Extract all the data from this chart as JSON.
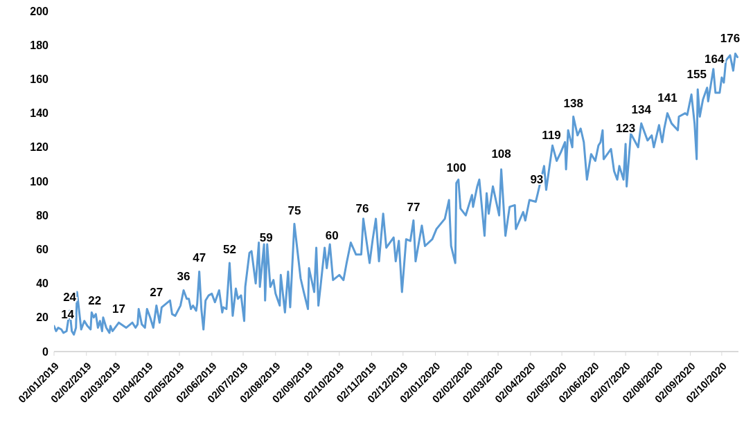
{
  "chart_data": {
    "type": "line",
    "x": [
      "2019-01-02",
      "2019-01-04",
      "2019-01-06",
      "2019-01-09",
      "2019-01-11",
      "2019-01-14",
      "2019-01-17",
      "2019-01-19",
      "2019-01-21",
      "2019-01-23",
      "2019-01-24",
      "2019-01-28",
      "2019-01-31",
      "2019-02-03",
      "2019-02-06",
      "2019-02-07",
      "2019-02-09",
      "2019-02-11",
      "2019-02-13",
      "2019-02-15",
      "2019-02-17",
      "2019-02-18",
      "2019-02-21",
      "2019-02-24",
      "2019-02-25",
      "2019-02-27",
      "2019-03-05",
      "2019-03-12",
      "2019-03-18",
      "2019-03-21",
      "2019-03-23",
      "2019-03-24",
      "2019-03-27",
      "2019-03-30",
      "2019-04-01",
      "2019-04-04",
      "2019-04-07",
      "2019-04-10",
      "2019-04-13",
      "2019-04-15",
      "2019-04-23",
      "2019-04-25",
      "2019-04-28",
      "2019-05-03",
      "2019-05-06",
      "2019-05-09",
      "2019-05-11",
      "2019-05-13",
      "2019-05-15",
      "2019-05-18",
      "2019-05-19",
      "2019-05-21",
      "2019-05-23",
      "2019-05-25",
      "2019-05-27",
      "2019-05-30",
      "2019-06-02",
      "2019-06-05",
      "2019-06-09",
      "2019-06-12",
      "2019-06-13",
      "2019-06-16",
      "2019-06-19",
      "2019-06-22",
      "2019-06-25",
      "2019-06-27",
      "2019-06-30",
      "2019-07-03",
      "2019-07-04",
      "2019-07-08",
      "2019-07-10",
      "2019-07-14",
      "2019-07-17",
      "2019-07-18",
      "2019-07-22",
      "2019-07-23",
      "2019-07-25",
      "2019-07-28",
      "2019-07-31",
      "2019-08-02",
      "2019-08-06",
      "2019-08-07",
      "2019-08-11",
      "2019-08-14",
      "2019-08-16",
      "2019-08-20",
      "2019-08-26",
      "2019-08-29",
      "2019-09-02",
      "2019-09-03",
      "2019-09-08",
      "2019-09-10",
      "2019-09-12",
      "2019-09-14",
      "2019-09-18",
      "2019-09-20",
      "2019-09-23",
      "2019-09-26",
      "2019-10-02",
      "2019-10-06",
      "2019-10-09",
      "2019-10-13",
      "2019-10-18",
      "2019-10-23",
      "2019-10-25",
      "2019-10-31",
      "2019-11-03",
      "2019-11-06",
      "2019-11-09",
      "2019-11-13",
      "2019-11-16",
      "2019-11-23",
      "2019-11-25",
      "2019-11-28",
      "2019-12-01",
      "2019-12-05",
      "2019-12-09",
      "2019-12-12",
      "2019-12-14",
      "2019-12-20",
      "2019-12-23",
      "2019-12-30",
      "2020-01-03",
      "2020-01-11",
      "2020-01-15",
      "2020-01-17",
      "2020-01-21",
      "2020-01-22",
      "2020-01-24",
      "2020-01-26",
      "2020-01-31",
      "2020-02-06",
      "2020-02-07",
      "2020-02-11",
      "2020-02-13",
      "2020-02-18",
      "2020-02-20",
      "2020-02-22",
      "2020-02-26",
      "2020-03-03",
      "2020-03-05",
      "2020-03-09",
      "2020-03-13",
      "2020-03-18",
      "2020-03-19",
      "2020-03-26",
      "2020-03-28",
      "2020-04-01",
      "2020-04-07",
      "2020-04-09",
      "2020-04-15",
      "2020-04-17",
      "2020-04-23",
      "2020-04-27",
      "2020-05-01",
      "2020-05-05",
      "2020-05-06",
      "2020-05-08",
      "2020-05-12",
      "2020-05-13",
      "2020-05-17",
      "2020-05-20",
      "2020-05-23",
      "2020-05-26",
      "2020-05-30",
      "2020-06-03",
      "2020-06-06",
      "2020-06-08",
      "2020-06-10",
      "2020-06-11",
      "2020-06-18",
      "2020-06-21",
      "2020-06-24",
      "2020-06-26",
      "2020-06-30",
      "2020-07-02",
      "2020-07-03",
      "2020-07-07",
      "2020-07-14",
      "2020-07-17",
      "2020-07-23",
      "2020-07-27",
      "2020-07-29",
      "2020-08-03",
      "2020-08-06",
      "2020-08-08",
      "2020-08-11",
      "2020-08-15",
      "2020-08-21",
      "2020-08-22",
      "2020-08-28",
      "2020-08-30",
      "2020-09-03",
      "2020-09-06",
      "2020-09-08",
      "2020-09-09",
      "2020-09-11",
      "2020-09-14",
      "2020-09-18",
      "2020-09-19",
      "2020-09-24",
      "2020-09-26",
      "2020-09-30",
      "2020-10-02",
      "2020-10-04",
      "2020-10-06",
      "2020-10-10",
      "2020-10-13",
      "2020-10-15",
      "2020-10-17"
    ],
    "series": [
      {
        "color": "#5b9bd5",
        "values": [
          15,
          12,
          14,
          13,
          11,
          12,
          24,
          12,
          10,
          14,
          35,
          13,
          18,
          15,
          13,
          23,
          20,
          22,
          14,
          18,
          12,
          20,
          14,
          11,
          15,
          12,
          17,
          14,
          17,
          14,
          16,
          25,
          16,
          14,
          25,
          20,
          14,
          27,
          17,
          26,
          30,
          22,
          21,
          27,
          36,
          31,
          31,
          25,
          27,
          24,
          28,
          47,
          25,
          13,
          30,
          33,
          34,
          29,
          36,
          23,
          26,
          25,
          52,
          21,
          37,
          31,
          33,
          18,
          38,
          58,
          59,
          40,
          64,
          38,
          63,
          30,
          63,
          38,
          42,
          34,
          27,
          45,
          23,
          47,
          26,
          75,
          43,
          35,
          25,
          49,
          35,
          61,
          27,
          38,
          61,
          49,
          63,
          42,
          45,
          42,
          52,
          64,
          57,
          57,
          78,
          52,
          66,
          78,
          53,
          81,
          61,
          67,
          53,
          65,
          35,
          66,
          65,
          77,
          53,
          74,
          62,
          66,
          72,
          78,
          89,
          62,
          52,
          99,
          101,
          84,
          80,
          92,
          85,
          97,
          101,
          68,
          93,
          81,
          97,
          80,
          107,
          68,
          85,
          86,
          72,
          82,
          77,
          89,
          88,
          93,
          109,
          95,
          121,
          112,
          117,
          123,
          107,
          130,
          120,
          138,
          127,
          131,
          123,
          101,
          116,
          112,
          121,
          123,
          130,
          113,
          119,
          106,
          101,
          109,
          101,
          122,
          97,
          128,
          120,
          134,
          124,
          127,
          120,
          133,
          123,
          131,
          140,
          134,
          130,
          138,
          140,
          139,
          151,
          134,
          113,
          154,
          138,
          148,
          155,
          147,
          166,
          152,
          152,
          161,
          158,
          171,
          174,
          165,
          175,
          173
        ]
      }
    ],
    "xlim": [
      "2019-01-02",
      "2020-10-18"
    ],
    "xticks": [
      {
        "value": "2019-01-02",
        "label": "02/01/2019"
      },
      {
        "value": "2019-02-02",
        "label": "02/02/2019"
      },
      {
        "value": "2019-03-02",
        "label": "02/03/2019"
      },
      {
        "value": "2019-04-02",
        "label": "02/04/2019"
      },
      {
        "value": "2019-05-02",
        "label": "02/05/2019"
      },
      {
        "value": "2019-06-02",
        "label": "02/06/2019"
      },
      {
        "value": "2019-07-02",
        "label": "02/07/2019"
      },
      {
        "value": "2019-08-02",
        "label": "02/08/2019"
      },
      {
        "value": "2019-09-02",
        "label": "02/09/2019"
      },
      {
        "value": "2019-10-02",
        "label": "02/10/2019"
      },
      {
        "value": "2019-11-02",
        "label": "02/11/2019"
      },
      {
        "value": "2019-12-02",
        "label": "02/12/2019"
      },
      {
        "value": "2020-01-02",
        "label": "02/01/2020"
      },
      {
        "value": "2020-02-02",
        "label": "02/02/2020"
      },
      {
        "value": "2020-03-02",
        "label": "02/03/2020"
      },
      {
        "value": "2020-04-02",
        "label": "02/04/2020"
      },
      {
        "value": "2020-05-02",
        "label": "02/05/2020"
      },
      {
        "value": "2020-06-02",
        "label": "02/06/2020"
      },
      {
        "value": "2020-07-02",
        "label": "02/07/2020"
      },
      {
        "value": "2020-08-02",
        "label": "02/08/2020"
      },
      {
        "value": "2020-09-02",
        "label": "02/09/2020"
      },
      {
        "value": "2020-10-02",
        "label": "02/10/2020"
      }
    ],
    "ylim": [
      0,
      200
    ],
    "yticks": [
      0,
      20,
      40,
      60,
      80,
      100,
      120,
      140,
      160,
      180,
      200
    ],
    "grid": false,
    "legend": false,
    "marker": "none",
    "line_style": "solid",
    "annotations": [
      {
        "text": "14",
        "x": "2019-01-15",
        "y": 14
      },
      {
        "text": "24",
        "x": "2019-01-17",
        "y": 24
      },
      {
        "text": "22",
        "x": "2019-02-10",
        "y": 22
      },
      {
        "text": "17",
        "x": "2019-03-05",
        "y": 17
      },
      {
        "text": "27",
        "x": "2019-04-10",
        "y": 27
      },
      {
        "text": "36",
        "x": "2019-05-06",
        "y": 36
      },
      {
        "text": "47",
        "x": "2019-05-21",
        "y": 47
      },
      {
        "text": "52",
        "x": "2019-06-19",
        "y": 52
      },
      {
        "text": "59",
        "x": "2019-07-24",
        "y": 59
      },
      {
        "text": "75",
        "x": "2019-08-20",
        "y": 75
      },
      {
        "text": "60",
        "x": "2019-09-25",
        "y": 60
      },
      {
        "text": "76",
        "x": "2019-10-24",
        "y": 76
      },
      {
        "text": "77",
        "x": "2019-12-12",
        "y": 77
      },
      {
        "text": "100",
        "x": "2020-01-22",
        "y": 100
      },
      {
        "text": "108",
        "x": "2020-03-05",
        "y": 108
      },
      {
        "text": "93",
        "x": "2020-04-08",
        "y": 93
      },
      {
        "text": "119",
        "x": "2020-04-22",
        "y": 119
      },
      {
        "text": "138",
        "x": "2020-05-13",
        "y": 138
      },
      {
        "text": "123",
        "x": "2020-07-02",
        "y": 123
      },
      {
        "text": "134",
        "x": "2020-07-17",
        "y": 134
      },
      {
        "text": "141",
        "x": "2020-08-11",
        "y": 141
      },
      {
        "text": "155",
        "x": "2020-09-08",
        "y": 155
      },
      {
        "text": "164",
        "x": "2020-09-25",
        "y": 164
      },
      {
        "text": "176",
        "x": "2020-10-10",
        "y": 176
      }
    ]
  }
}
